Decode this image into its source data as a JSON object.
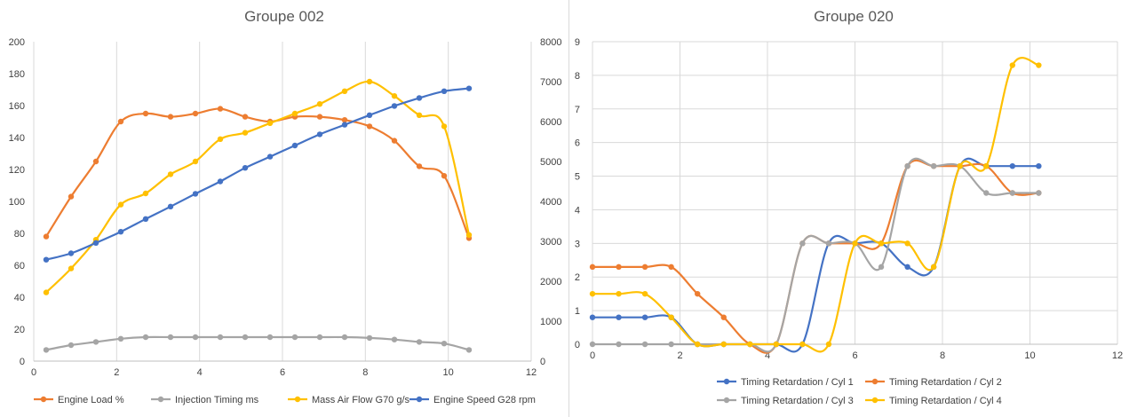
{
  "chart_data": [
    {
      "type": "line",
      "title": "Groupe 002",
      "xlim": [
        0,
        12
      ],
      "x_ticks": [
        "0",
        "2",
        "4",
        "6",
        "8",
        "10",
        "12"
      ],
      "ylim": [
        0,
        200
      ],
      "y_ticks": [
        "0",
        "20",
        "40",
        "60",
        "80",
        "100",
        "120",
        "140",
        "160",
        "180",
        "200"
      ],
      "y2lim": [
        0,
        8000
      ],
      "y2_ticks": [
        "0",
        "1000",
        "2000",
        "3000",
        "4000",
        "5000",
        "6000",
        "7000",
        "8000"
      ],
      "grid": "vertical",
      "legend_position": "bottom",
      "series": [
        {
          "name": "Engine Load %",
          "color": "#ED7D31",
          "axis": "left",
          "x": [
            0.3,
            0.9,
            1.5,
            2.1,
            2.7,
            3.3,
            3.9,
            4.5,
            5.1,
            5.7,
            6.3,
            6.9,
            7.5,
            8.1,
            8.7,
            9.3,
            9.9,
            10.5
          ],
          "y": [
            78,
            103,
            125,
            150,
            155,
            153,
            155,
            158,
            153,
            150,
            153,
            153,
            151,
            147,
            138,
            122,
            116,
            77
          ]
        },
        {
          "name": "Injection Timing ms",
          "color": "#A5A5A5",
          "axis": "left",
          "x": [
            0.3,
            0.9,
            1.5,
            2.1,
            2.7,
            3.3,
            3.9,
            4.5,
            5.1,
            5.7,
            6.3,
            6.9,
            7.5,
            8.1,
            8.7,
            9.3,
            9.9,
            10.5
          ],
          "y": [
            7,
            10,
            12,
            14,
            15,
            15,
            15,
            15,
            15,
            15,
            15,
            15,
            15,
            14.5,
            13.5,
            12,
            11,
            7
          ]
        },
        {
          "name": "Mass Air Flow G70 g/s",
          "color": "#FFC000",
          "axis": "left",
          "x": [
            0.3,
            0.9,
            1.5,
            2.1,
            2.7,
            3.3,
            3.9,
            4.5,
            5.1,
            5.7,
            6.3,
            6.9,
            7.5,
            8.1,
            8.7,
            9.3,
            9.9,
            10.5
          ],
          "y": [
            43,
            58,
            76,
            98,
            105,
            117,
            125,
            139,
            143,
            149,
            155,
            161,
            169,
            175,
            166,
            154,
            147,
            79
          ]
        },
        {
          "name": "Engine Speed G28 rpm",
          "color": "#4472C4",
          "axis": "right",
          "x": [
            0.3,
            0.9,
            1.5,
            2.1,
            2.7,
            3.3,
            3.9,
            4.5,
            5.1,
            5.7,
            6.3,
            6.9,
            7.5,
            8.1,
            8.7,
            9.3,
            9.9,
            10.5
          ],
          "y": [
            2540,
            2700,
            2960,
            3240,
            3560,
            3870,
            4190,
            4500,
            4840,
            5120,
            5400,
            5680,
            5920,
            6160,
            6390,
            6590,
            6760,
            6830
          ]
        }
      ]
    },
    {
      "type": "line",
      "title": "Groupe 020",
      "xlim": [
        0,
        12
      ],
      "x_ticks": [
        "0",
        "2",
        "4",
        "6",
        "8",
        "10",
        "12"
      ],
      "ylim": [
        0,
        9
      ],
      "y_ticks": [
        "0",
        "1",
        "2",
        "3",
        "4",
        "5",
        "6",
        "7",
        "8",
        "9"
      ],
      "grid": "both",
      "legend_position": "bottom",
      "series": [
        {
          "name": "Timing Retardation / Cyl 1",
          "color": "#4472C4",
          "x": [
            0,
            0.6,
            1.2,
            1.8,
            2.4,
            3.0,
            3.6,
            4.2,
            4.8,
            5.4,
            6.0,
            6.6,
            7.2,
            7.8,
            8.4,
            9.0,
            9.6,
            10.2
          ],
          "y": [
            0.8,
            0.8,
            0.8,
            0.8,
            0,
            0,
            0,
            0,
            0,
            3.0,
            3.0,
            3.0,
            2.3,
            2.3,
            5.3,
            5.3,
            5.3,
            5.3
          ]
        },
        {
          "name": "Timing Retardation / Cyl 2",
          "color": "#ED7D31",
          "x": [
            0,
            0.6,
            1.2,
            1.8,
            2.4,
            3.0,
            3.6,
            4.2,
            4.8,
            5.4,
            6.0,
            6.6,
            7.2,
            7.8,
            8.4,
            9.0,
            9.6,
            10.2
          ],
          "y": [
            2.3,
            2.3,
            2.3,
            2.3,
            1.5,
            0.8,
            0,
            0,
            3.0,
            3.0,
            3.0,
            3.0,
            5.3,
            5.3,
            5.3,
            5.3,
            4.5,
            4.5
          ]
        },
        {
          "name": "Timing Retardation / Cyl 3",
          "color": "#A5A5A5",
          "x": [
            0,
            0.6,
            1.2,
            1.8,
            2.4,
            3.0,
            3.6,
            4.2,
            4.8,
            5.4,
            6.0,
            6.6,
            7.2,
            7.8,
            8.4,
            9.0,
            9.6,
            10.2
          ],
          "y": [
            0,
            0,
            0,
            0,
            0,
            0,
            0,
            0,
            3.0,
            3.0,
            3.0,
            2.3,
            5.3,
            5.3,
            5.3,
            4.5,
            4.5,
            4.5
          ]
        },
        {
          "name": "Timing Retardation / Cyl 4",
          "color": "#FFC000",
          "x": [
            0,
            0.6,
            1.2,
            1.8,
            2.4,
            3.0,
            3.6,
            4.2,
            4.8,
            5.4,
            6.0,
            6.6,
            7.2,
            7.8,
            8.4,
            9.0,
            9.6,
            10.2
          ],
          "y": [
            1.5,
            1.5,
            1.5,
            0.8,
            0,
            0,
            0,
            0,
            0,
            0,
            3.0,
            3.0,
            3.0,
            2.3,
            5.3,
            5.3,
            8.3,
            8.3
          ]
        }
      ]
    }
  ]
}
